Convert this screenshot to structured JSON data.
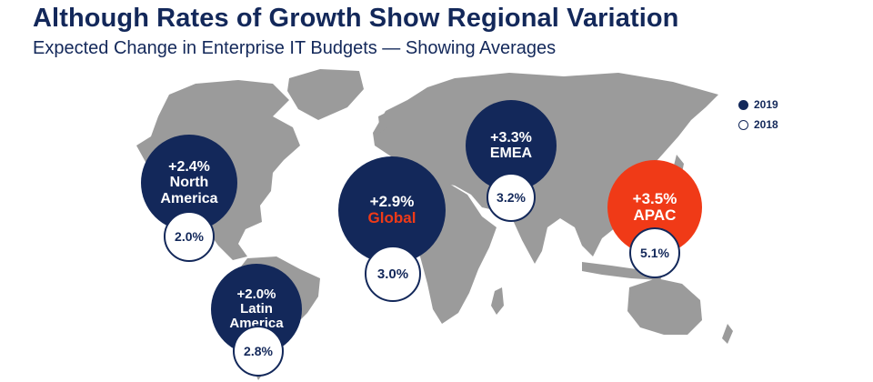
{
  "title": "Although Rates of Growth Show Regional Variation",
  "subtitle": "Expected Change in Enterprise IT Budgets — Showing Averages",
  "legend": {
    "current_label": "2019",
    "previous_label": "2018"
  },
  "colors": {
    "navy": "#13285a",
    "accent": "#f03a17",
    "map": "#9b9b9b"
  },
  "chart_data": {
    "type": "bubble-map",
    "series": [
      {
        "name": "2019",
        "values": [
          2.4,
          2.0,
          2.9,
          3.3,
          3.5
        ]
      },
      {
        "name": "2018",
        "values": [
          2.0,
          2.8,
          3.0,
          3.2,
          5.1
        ]
      }
    ],
    "categories": [
      "North America",
      "Latin America",
      "Global",
      "EMEA",
      "APAC"
    ],
    "regions": [
      {
        "key": "na",
        "line1": "North",
        "line2": "America",
        "value_2019": "+2.4%",
        "value_2018": "2.0%",
        "highlight": false
      },
      {
        "key": "la",
        "line1": "Latin",
        "line2": "America",
        "value_2019": "+2.0%",
        "value_2018": "2.8%",
        "highlight": false
      },
      {
        "key": "global",
        "line1": "Global",
        "line2": "",
        "value_2019": "+2.9%",
        "value_2018": "3.0%",
        "highlight": false
      },
      {
        "key": "emea",
        "line1": "EMEA",
        "line2": "",
        "value_2019": "+3.3%",
        "value_2018": "3.2%",
        "highlight": false
      },
      {
        "key": "apac",
        "line1": "APAC",
        "line2": "",
        "value_2019": "+3.5%",
        "value_2018": "5.1%",
        "highlight": true
      }
    ]
  }
}
